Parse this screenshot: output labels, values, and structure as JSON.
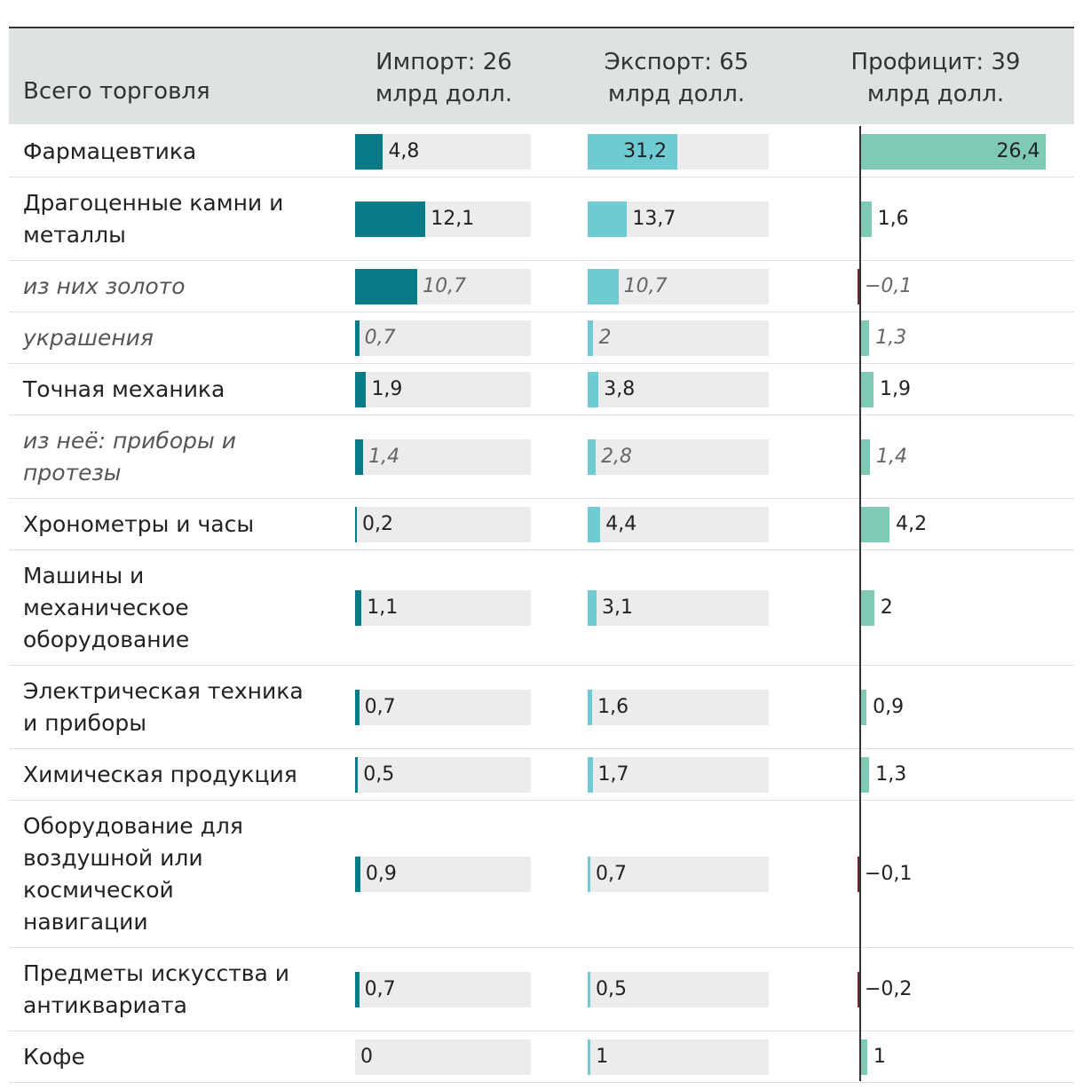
{
  "header": {
    "category": "Всего торговля",
    "import": [
      "Импорт: 26",
      "млрд долл."
    ],
    "export": [
      "Экспорт: 65",
      "млрд долл."
    ],
    "surplus": [
      "Профицит: 39",
      "млрд долл."
    ]
  },
  "colors": {
    "import": "#077c87",
    "export": "#6fcbd3",
    "surplus": "#7fcab7",
    "negative": "#7a1f2b"
  },
  "chart_data": {
    "type": "table",
    "title": "Всего торговля",
    "columns": [
      "Импорт: 26 млрд долл.",
      "Экспорт: 65 млрд долл.",
      "Профицит: 39 млрд долл."
    ],
    "totals": {
      "import": 26,
      "export": 65,
      "surplus": 39
    },
    "rows": [
      {
        "lines": [
          "Фармацевтика"
        ],
        "italic": false,
        "import": 4.8,
        "export": 31.2,
        "surplus": 26.4,
        "import_label": "4,8",
        "export_label": "31,2",
        "surplus_label": "26,4"
      },
      {
        "lines": [
          "Драгоценные камни и",
          "металлы"
        ],
        "italic": false,
        "import": 12.1,
        "export": 13.7,
        "surplus": 1.6,
        "import_label": "12,1",
        "export_label": "13,7",
        "surplus_label": "1,6"
      },
      {
        "lines": [
          "из них золото"
        ],
        "italic": true,
        "import": 10.7,
        "export": 10.7,
        "surplus": -0.1,
        "import_label": "10,7",
        "export_label": "10,7",
        "surplus_label": "−0,1"
      },
      {
        "lines": [
          "украшения"
        ],
        "italic": true,
        "import": 0.7,
        "export": 2,
        "surplus": 1.3,
        "import_label": "0,7",
        "export_label": "2",
        "surplus_label": "1,3"
      },
      {
        "lines": [
          "Точная механика"
        ],
        "italic": false,
        "import": 1.9,
        "export": 3.8,
        "surplus": 1.9,
        "import_label": "1,9",
        "export_label": "3,8",
        "surplus_label": "1,9"
      },
      {
        "lines": [
          "из неё: приборы и",
          "протезы"
        ],
        "italic": true,
        "import": 1.4,
        "export": 2.8,
        "surplus": 1.4,
        "import_label": "1,4",
        "export_label": "2,8",
        "surplus_label": "1,4"
      },
      {
        "lines": [
          "Хронометры и часы"
        ],
        "italic": false,
        "import": 0.2,
        "export": 4.4,
        "surplus": 4.2,
        "import_label": "0,2",
        "export_label": "4,4",
        "surplus_label": "4,2"
      },
      {
        "lines": [
          "Машины и",
          "механическое",
          "оборудование"
        ],
        "italic": false,
        "import": 1.1,
        "export": 3.1,
        "surplus": 2,
        "import_label": "1,1",
        "export_label": "3,1",
        "surplus_label": "2"
      },
      {
        "lines": [
          "Электрическая техника",
          "и приборы"
        ],
        "italic": false,
        "import": 0.7,
        "export": 1.6,
        "surplus": 0.9,
        "import_label": "0,7",
        "export_label": "1,6",
        "surplus_label": "0,9"
      },
      {
        "lines": [
          "Химическая продукция"
        ],
        "italic": false,
        "import": 0.5,
        "export": 1.7,
        "surplus": 1.3,
        "import_label": "0,5",
        "export_label": "1,7",
        "surplus_label": "1,3"
      },
      {
        "lines": [
          "Оборудование для",
          "воздушной или",
          "космической",
          "навигации"
        ],
        "italic": false,
        "import": 0.9,
        "export": 0.7,
        "surplus": -0.1,
        "import_label": "0,9",
        "export_label": "0,7",
        "surplus_label": "−0,1"
      },
      {
        "lines": [
          "Предметы искусства и",
          "антиквариата"
        ],
        "italic": false,
        "import": 0.7,
        "export": 0.5,
        "surplus": -0.2,
        "import_label": "0,7",
        "export_label": "0,5",
        "surplus_label": "−0,2"
      },
      {
        "lines": [
          "Кофе"
        ],
        "italic": false,
        "import": 0,
        "export": 1,
        "surplus": 1,
        "import_label": "0",
        "export_label": "1",
        "surplus_label": "1"
      }
    ]
  }
}
